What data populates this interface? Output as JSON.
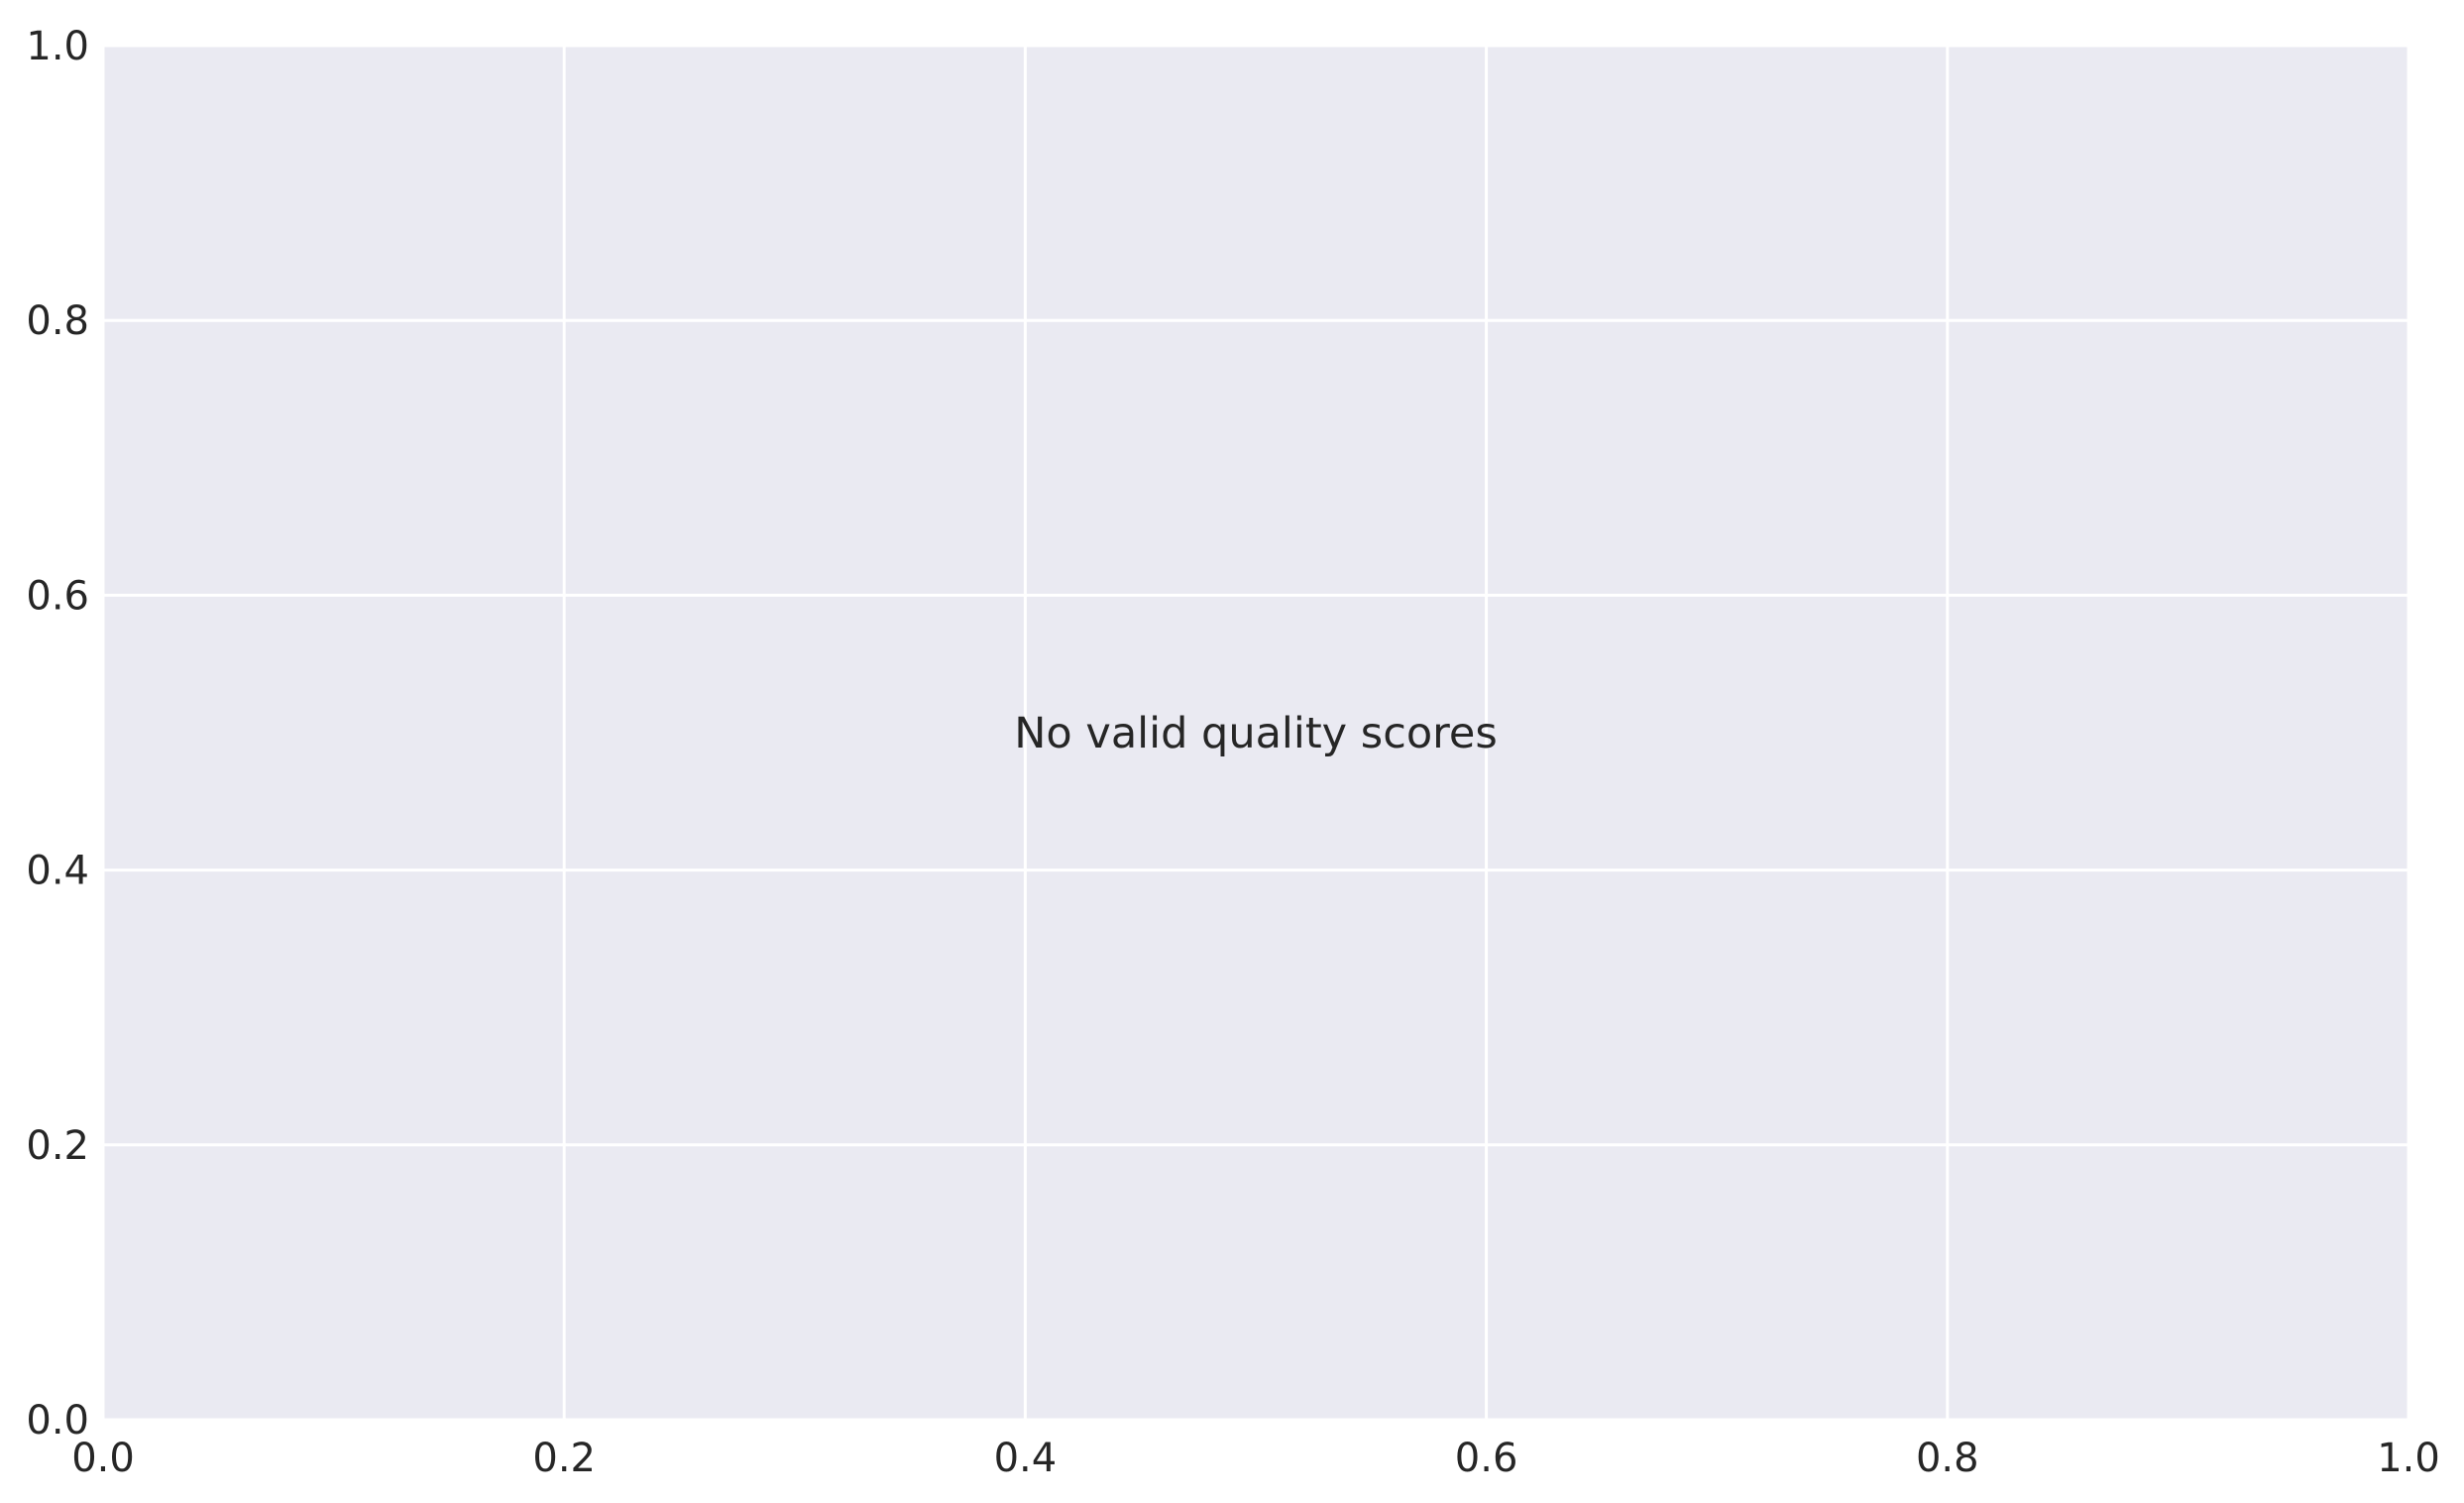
{
  "chart_data": {
    "type": "scatter",
    "title": "",
    "xlabel": "",
    "ylabel": "",
    "xlim": [
      0,
      1
    ],
    "ylim": [
      0,
      1
    ],
    "x_ticks": [
      "0.0",
      "0.2",
      "0.4",
      "0.6",
      "0.8",
      "1.0"
    ],
    "y_ticks": [
      "0.0",
      "0.2",
      "0.4",
      "0.6",
      "0.8",
      "1.0"
    ],
    "series": [],
    "grid": true,
    "annotation": {
      "text": "No valid quality scores",
      "x": 0.5,
      "y": 0.5
    },
    "colors": {
      "plot_background": "#eaeaf2",
      "grid": "#ffffff",
      "text": "#262626"
    }
  }
}
